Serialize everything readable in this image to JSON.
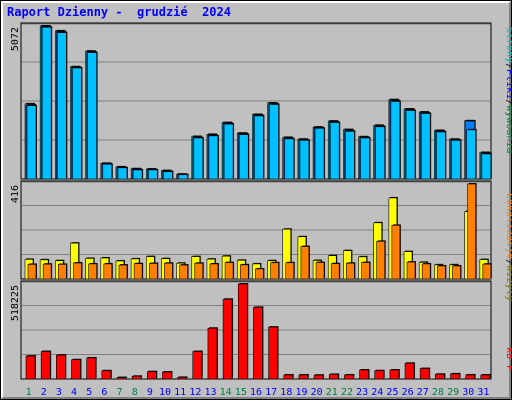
{
  "header": {
    "title": "Raport Dzienny -  grudzié  2024"
  },
  "colors": {
    "hits": "#00d0ff",
    "files": "#0080ff",
    "pages": "#00c0ff",
    "visits": "#ffff00",
    "sites": "#ff8000",
    "kbf": "#ff0000",
    "legend_visits": "#808000",
    "legend_sites": "#ff8000",
    "legend_kb": "#ff0000",
    "legend_hits": "#008040",
    "legend_files": "#0000ff",
    "legend_pages": "#00c0c0",
    "weekend": "#008040",
    "weekday": "#0000ff"
  },
  "chart_data": [
    {
      "type": "bar",
      "panel": "hits-files-pages",
      "ymax_label": "5072",
      "ymax": 5072,
      "legend": [
        "Wywóania",
        "Pliki",
        "Strony"
      ],
      "legend_separator": "/",
      "series": [
        {
          "name": "Wywóania",
          "values": [
            2490,
            5072,
            4910,
            3720,
            4240,
            520,
            400,
            340,
            330,
            280,
            160,
            1410,
            1480,
            1870,
            1520,
            2140,
            2520,
            1380,
            1320,
            1720,
            1920,
            1640,
            1400,
            1780,
            2630,
            2320,
            2220,
            1610,
            1320,
            1930,
            880
          ]
        },
        {
          "name": "Pliki",
          "values": [
            2450,
            5060,
            4880,
            3700,
            4210,
            510,
            380,
            320,
            310,
            250,
            150,
            1380,
            1450,
            1850,
            1500,
            2120,
            2490,
            1350,
            1300,
            1700,
            1890,
            1600,
            1380,
            1750,
            2600,
            2300,
            2190,
            1590,
            1300,
            1920,
            850
          ]
        },
        {
          "name": "Strony",
          "values": [
            2430,
            5030,
            4850,
            3680,
            4190,
            490,
            370,
            300,
            300,
            240,
            140,
            1360,
            1430,
            1820,
            1470,
            2090,
            2470,
            1330,
            1280,
            1680,
            1870,
            1580,
            1360,
            1730,
            2570,
            2270,
            2170,
            1560,
            1280,
            1630,
            830
          ]
        }
      ]
    },
    {
      "type": "bar",
      "panel": "visits-sites",
      "ymax_label": "416",
      "ymax": 416,
      "legend": [
        "Lokalizacje",
        "Wizyty"
      ],
      "legend_separator": "/",
      "series": [
        {
          "name": "Wizyty",
          "values": [
            86,
            84,
            80,
            157,
            90,
            92,
            79,
            88,
            98,
            89,
            69,
            98,
            87,
            100,
            82,
            66,
            80,
            218,
            185,
            81,
            102,
            124,
            97,
            246,
            355,
            120,
            73,
            62,
            62,
            295,
            85
          ]
        },
        {
          "name": "Lokalizacje",
          "values": [
            64,
            65,
            64,
            70,
            66,
            66,
            61,
            67,
            68,
            69,
            61,
            69,
            66,
            72,
            62,
            44,
            71,
            71,
            142,
            72,
            67,
            69,
            72,
            165,
            235,
            74,
            66,
            57,
            57,
            416,
            65
          ]
        }
      ]
    },
    {
      "type": "bar",
      "panel": "kbf",
      "ymax_label": "518225",
      "ymax": 518225,
      "legend": [
        "kB F"
      ],
      "series": [
        {
          "name": "kB F",
          "values": [
            125000,
            150000,
            130000,
            105000,
            115000,
            45000,
            8000,
            15000,
            40000,
            38000,
            9000,
            150000,
            277000,
            435000,
            518225,
            391000,
            283000,
            22000,
            22000,
            21000,
            25000,
            22000,
            49000,
            45000,
            49000,
            86000,
            57000,
            26000,
            28000,
            22000,
            22000
          ]
        }
      ]
    },
    {
      "type": "bar",
      "panel": "x-axis",
      "categories": [
        "1",
        "2",
        "3",
        "4",
        "5",
        "6",
        "7",
        "8",
        "9",
        "10",
        "11",
        "12",
        "13",
        "14",
        "15",
        "16",
        "17",
        "18",
        "19",
        "20",
        "21",
        "22",
        "23",
        "24",
        "25",
        "26",
        "27",
        "28",
        "29",
        "30",
        "31"
      ],
      "weekend_days": [
        1,
        7,
        8,
        14,
        15,
        21,
        22,
        28,
        29
      ]
    }
  ]
}
